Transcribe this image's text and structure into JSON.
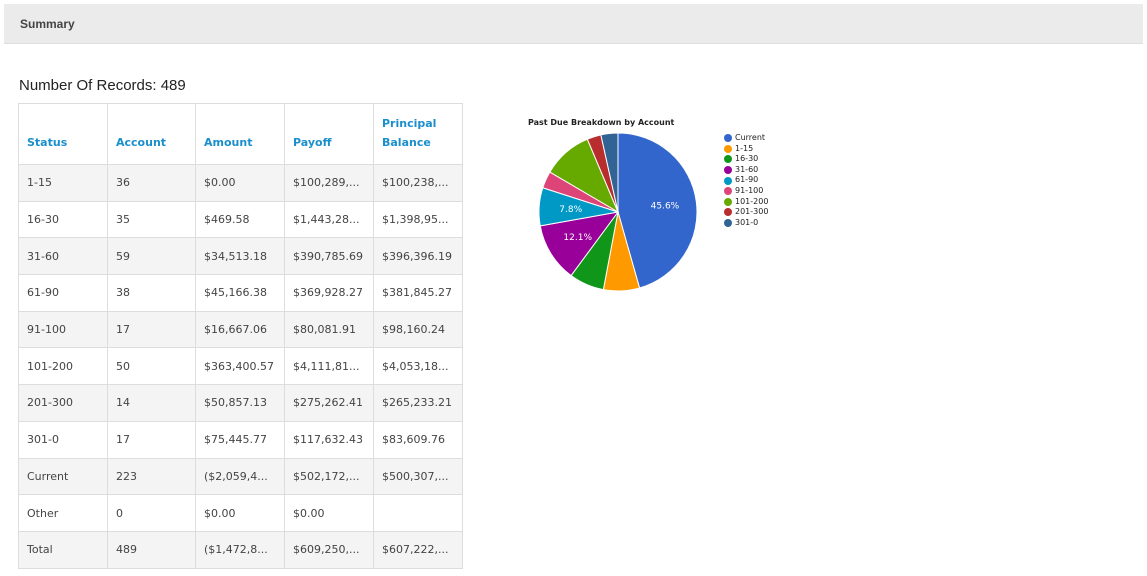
{
  "header": {
    "title": "Summary"
  },
  "records": {
    "label": "Number Of Records: 489"
  },
  "table": {
    "headers": [
      "Status",
      "Account",
      "Amount",
      "Payoff",
      "Principal Balance"
    ],
    "rows": [
      [
        "1-15",
        "36",
        "$0.00",
        "$100,289,...",
        "$100,238,..."
      ],
      [
        "16-30",
        "35",
        "$469.58",
        "$1,443,28...",
        "$1,398,95..."
      ],
      [
        "31-60",
        "59",
        "$34,513.18",
        "$390,785.69",
        "$396,396.19"
      ],
      [
        "61-90",
        "38",
        "$45,166.38",
        "$369,928.27",
        "$381,845.27"
      ],
      [
        "91-100",
        "17",
        "$16,667.06",
        "$80,081.91",
        "$98,160.24"
      ],
      [
        "101-200",
        "50",
        "$363,400.57",
        "$4,111,81...",
        "$4,053,18..."
      ],
      [
        "201-300",
        "14",
        "$50,857.13",
        "$275,262.41",
        "$265,233.21"
      ],
      [
        "301-0",
        "17",
        "$75,445.77",
        "$117,632.43",
        "$83,609.76"
      ],
      [
        "Current",
        "223",
        "($2,059,4...",
        "$502,172,...",
        "$500,307,..."
      ],
      [
        "Other",
        "0",
        "$0.00",
        "$0.00",
        ""
      ],
      [
        "Total",
        "489",
        "($1,472,8...",
        "$609,250,...",
        "$607,222,..."
      ]
    ]
  },
  "chart_data": {
    "type": "pie",
    "title": "Past Due Breakdown by Account",
    "legend_position": "right",
    "slices": [
      {
        "label": "Current",
        "value": 223,
        "pct_label": "45.6%",
        "color": "#3366cc"
      },
      {
        "label": "1-15",
        "value": 36,
        "pct_label": "",
        "color": "#ff9900"
      },
      {
        "label": "16-30",
        "value": 35,
        "pct_label": "",
        "color": "#109618"
      },
      {
        "label": "31-60",
        "value": 59,
        "pct_label": "12.1%",
        "color": "#990099"
      },
      {
        "label": "61-90",
        "value": 38,
        "pct_label": "7.8%",
        "color": "#0099c6"
      },
      {
        "label": "91-100",
        "value": 17,
        "pct_label": "",
        "color": "#dd4477"
      },
      {
        "label": "101-200",
        "value": 50,
        "pct_label": "",
        "color": "#66aa00"
      },
      {
        "label": "201-300",
        "value": 14,
        "pct_label": "",
        "color": "#b82e2e"
      },
      {
        "label": "301-0",
        "value": 17,
        "pct_label": "",
        "color": "#316395"
      }
    ]
  }
}
